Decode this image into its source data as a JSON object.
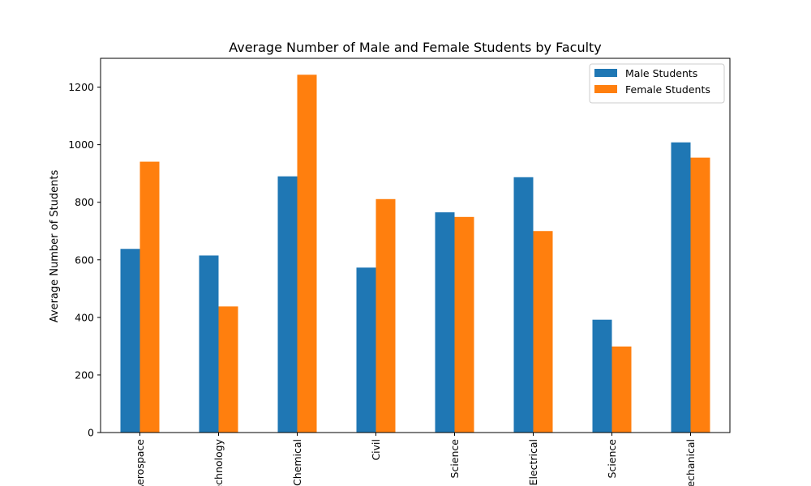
{
  "chart_data": {
    "type": "bar",
    "title": "Average Number of Male and Female Students by Faculty",
    "xlabel": "",
    "ylabel": "Average Number of Students",
    "categories": [
      "Aerospace",
      "Technology",
      "Chemical",
      "Civil",
      "Science",
      "Electrical",
      "Science",
      "Mechanical"
    ],
    "series": [
      {
        "name": "Male Students",
        "values": [
          638,
          615,
          890,
          573,
          765,
          887,
          392,
          1008
        ],
        "color": "#1f77b4"
      },
      {
        "name": "Female Students",
        "values": [
          941,
          438,
          1243,
          811,
          749,
          700,
          299,
          955
        ],
        "color": "#ff7f0e"
      }
    ],
    "ylim": [
      0,
      1300
    ],
    "yticks": [
      0,
      200,
      400,
      600,
      800,
      1000,
      1200
    ],
    "grid": false,
    "legend_position": "top-right"
  }
}
